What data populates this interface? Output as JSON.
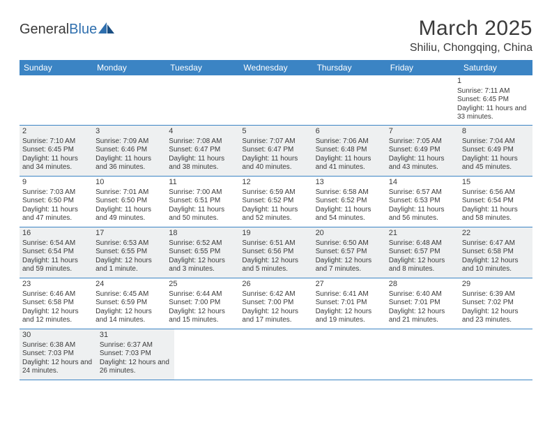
{
  "colors": {
    "header_bg": "#3b84c4",
    "header_text": "#ffffff",
    "border": "#3b84c4",
    "shaded_bg": "#eef0f1",
    "text": "#3a3a3a",
    "logo_blue": "#2f6fae"
  },
  "logo": {
    "part1": "General",
    "part2": "Blue"
  },
  "title": "March 2025",
  "location": "Shiliu, Chongqing, China",
  "weekdays": [
    "Sunday",
    "Monday",
    "Tuesday",
    "Wednesday",
    "Thursday",
    "Friday",
    "Saturday"
  ],
  "weeks": [
    [
      null,
      null,
      null,
      null,
      null,
      null,
      {
        "n": "1",
        "sr": "7:11 AM",
        "ss": "6:45 PM",
        "dl": "11 hours and 33 minutes."
      }
    ],
    [
      {
        "n": "2",
        "sr": "7:10 AM",
        "ss": "6:45 PM",
        "dl": "11 hours and 34 minutes."
      },
      {
        "n": "3",
        "sr": "7:09 AM",
        "ss": "6:46 PM",
        "dl": "11 hours and 36 minutes."
      },
      {
        "n": "4",
        "sr": "7:08 AM",
        "ss": "6:47 PM",
        "dl": "11 hours and 38 minutes."
      },
      {
        "n": "5",
        "sr": "7:07 AM",
        "ss": "6:47 PM",
        "dl": "11 hours and 40 minutes."
      },
      {
        "n": "6",
        "sr": "7:06 AM",
        "ss": "6:48 PM",
        "dl": "11 hours and 41 minutes."
      },
      {
        "n": "7",
        "sr": "7:05 AM",
        "ss": "6:49 PM",
        "dl": "11 hours and 43 minutes."
      },
      {
        "n": "8",
        "sr": "7:04 AM",
        "ss": "6:49 PM",
        "dl": "11 hours and 45 minutes."
      }
    ],
    [
      {
        "n": "9",
        "sr": "7:03 AM",
        "ss": "6:50 PM",
        "dl": "11 hours and 47 minutes."
      },
      {
        "n": "10",
        "sr": "7:01 AM",
        "ss": "6:50 PM",
        "dl": "11 hours and 49 minutes."
      },
      {
        "n": "11",
        "sr": "7:00 AM",
        "ss": "6:51 PM",
        "dl": "11 hours and 50 minutes."
      },
      {
        "n": "12",
        "sr": "6:59 AM",
        "ss": "6:52 PM",
        "dl": "11 hours and 52 minutes."
      },
      {
        "n": "13",
        "sr": "6:58 AM",
        "ss": "6:52 PM",
        "dl": "11 hours and 54 minutes."
      },
      {
        "n": "14",
        "sr": "6:57 AM",
        "ss": "6:53 PM",
        "dl": "11 hours and 56 minutes."
      },
      {
        "n": "15",
        "sr": "6:56 AM",
        "ss": "6:54 PM",
        "dl": "11 hours and 58 minutes."
      }
    ],
    [
      {
        "n": "16",
        "sr": "6:54 AM",
        "ss": "6:54 PM",
        "dl": "11 hours and 59 minutes."
      },
      {
        "n": "17",
        "sr": "6:53 AM",
        "ss": "6:55 PM",
        "dl": "12 hours and 1 minute."
      },
      {
        "n": "18",
        "sr": "6:52 AM",
        "ss": "6:55 PM",
        "dl": "12 hours and 3 minutes."
      },
      {
        "n": "19",
        "sr": "6:51 AM",
        "ss": "6:56 PM",
        "dl": "12 hours and 5 minutes."
      },
      {
        "n": "20",
        "sr": "6:50 AM",
        "ss": "6:57 PM",
        "dl": "12 hours and 7 minutes."
      },
      {
        "n": "21",
        "sr": "6:48 AM",
        "ss": "6:57 PM",
        "dl": "12 hours and 8 minutes."
      },
      {
        "n": "22",
        "sr": "6:47 AM",
        "ss": "6:58 PM",
        "dl": "12 hours and 10 minutes."
      }
    ],
    [
      {
        "n": "23",
        "sr": "6:46 AM",
        "ss": "6:58 PM",
        "dl": "12 hours and 12 minutes."
      },
      {
        "n": "24",
        "sr": "6:45 AM",
        "ss": "6:59 PM",
        "dl": "12 hours and 14 minutes."
      },
      {
        "n": "25",
        "sr": "6:44 AM",
        "ss": "7:00 PM",
        "dl": "12 hours and 15 minutes."
      },
      {
        "n": "26",
        "sr": "6:42 AM",
        "ss": "7:00 PM",
        "dl": "12 hours and 17 minutes."
      },
      {
        "n": "27",
        "sr": "6:41 AM",
        "ss": "7:01 PM",
        "dl": "12 hours and 19 minutes."
      },
      {
        "n": "28",
        "sr": "6:40 AM",
        "ss": "7:01 PM",
        "dl": "12 hours and 21 minutes."
      },
      {
        "n": "29",
        "sr": "6:39 AM",
        "ss": "7:02 PM",
        "dl": "12 hours and 23 minutes."
      }
    ],
    [
      {
        "n": "30",
        "sr": "6:38 AM",
        "ss": "7:03 PM",
        "dl": "12 hours and 24 minutes."
      },
      {
        "n": "31",
        "sr": "6:37 AM",
        "ss": "7:03 PM",
        "dl": "12 hours and 26 minutes."
      },
      null,
      null,
      null,
      null,
      null
    ]
  ],
  "labels": {
    "sunrise": "Sunrise:",
    "sunset": "Sunset:",
    "daylight": "Daylight:"
  }
}
